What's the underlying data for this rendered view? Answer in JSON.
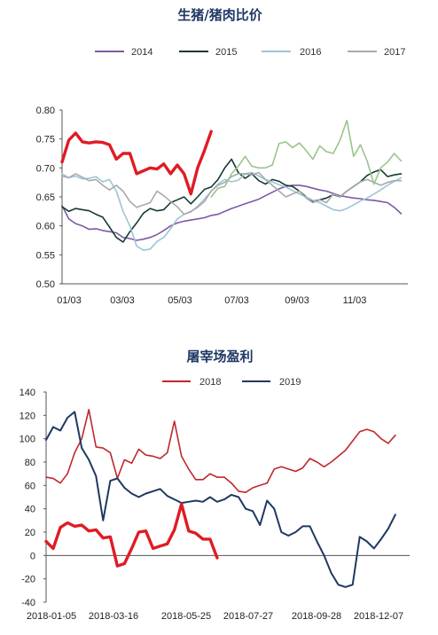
{
  "chart_data": [
    {
      "type": "line",
      "title": "生猪/猪肉比价",
      "x_ticks": [
        "01/03",
        "03/03",
        "05/03",
        "07/03",
        "09/03",
        "11/03"
      ],
      "y_ticks": [
        "0.80",
        "0.75",
        "0.70",
        "0.65",
        "0.60",
        "0.55",
        "0.50"
      ],
      "ylim": [
        0.5,
        0.8
      ],
      "xlim": [
        0,
        51
      ],
      "grid": false,
      "legend_position": "top",
      "series": [
        {
          "name": "2014",
          "color": "#7b5aa6",
          "width": 1.6,
          "values": [
            0.635,
            0.612,
            0.604,
            0.6,
            0.594,
            0.595,
            0.592,
            0.59,
            0.588,
            0.58,
            0.578,
            0.575,
            0.577,
            0.58,
            0.585,
            0.592,
            0.6,
            0.605,
            0.608,
            0.61,
            0.612,
            0.614,
            0.618,
            0.62,
            0.625,
            0.63,
            0.634,
            0.638,
            0.642,
            0.646,
            0.652,
            0.658,
            0.664,
            0.668,
            0.67,
            0.67,
            0.668,
            0.665,
            0.662,
            0.66,
            0.656,
            0.652,
            0.65,
            0.648,
            0.647,
            0.645,
            0.644,
            0.642,
            0.64,
            0.632,
            0.621
          ]
        },
        {
          "name": "2015",
          "color": "#163a2e",
          "width": 1.6,
          "values": [
            0.633,
            0.625,
            0.63,
            0.628,
            0.626,
            0.62,
            0.615,
            0.598,
            0.58,
            0.572,
            0.59,
            0.605,
            0.622,
            0.63,
            0.626,
            0.628,
            0.64,
            0.645,
            0.65,
            0.638,
            0.65,
            0.663,
            0.667,
            0.68,
            0.7,
            0.715,
            0.692,
            0.682,
            0.69,
            0.678,
            0.672,
            0.68,
            0.677,
            0.67,
            0.668,
            0.66,
            0.65,
            0.642,
            0.645,
            0.648,
            0.654,
            0.65,
            0.66,
            0.668,
            0.676,
            0.687,
            0.693,
            0.697,
            0.685,
            0.688,
            0.69
          ]
        },
        {
          "name": "2016",
          "color": "#9dc4d8",
          "width": 1.6,
          "values": [
            0.69,
            0.683,
            0.686,
            0.681,
            0.682,
            0.685,
            0.676,
            0.68,
            0.66,
            0.625,
            0.6,
            0.565,
            0.558,
            0.56,
            0.573,
            0.58,
            0.595,
            0.612,
            0.62,
            0.624,
            0.634,
            0.646,
            0.66,
            0.672,
            0.68,
            0.676,
            0.679,
            0.69,
            0.692,
            0.686,
            0.68,
            0.676,
            0.671,
            0.667,
            0.661,
            0.655,
            0.65,
            0.644,
            0.64,
            0.634,
            0.628,
            0.626,
            0.63,
            0.636,
            0.643,
            0.648,
            0.655,
            0.662,
            0.67,
            0.677,
            0.683
          ]
        },
        {
          "name": "2017",
          "color": "#a9a9a9",
          "width": 1.6,
          "values": [
            0.686,
            0.683,
            0.69,
            0.684,
            0.678,
            0.68,
            0.67,
            0.662,
            0.67,
            0.66,
            0.642,
            0.632,
            0.636,
            0.64,
            0.66,
            0.652,
            0.642,
            0.633,
            0.62,
            0.625,
            0.632,
            0.642,
            0.66,
            0.67,
            0.675,
            0.685,
            0.69,
            0.69,
            0.688,
            0.692,
            0.68,
            0.67,
            0.66,
            0.65,
            0.655,
            0.66,
            0.648,
            0.64,
            0.645,
            0.64,
            0.655,
            0.65,
            0.66,
            0.668,
            0.676,
            0.68,
            0.675,
            0.67,
            0.675,
            0.678,
            0.678
          ]
        },
        {
          "name": "",
          "color": "#9bc48c",
          "width": 1.6,
          "values": [
            null,
            null,
            null,
            null,
            null,
            null,
            null,
            null,
            null,
            null,
            null,
            null,
            null,
            null,
            null,
            null,
            null,
            null,
            null,
            null,
            null,
            null,
            0.65,
            0.665,
            0.668,
            0.69,
            0.703,
            0.72,
            0.703,
            0.7,
            0.7,
            0.705,
            0.742,
            0.745,
            0.735,
            0.743,
            0.73,
            0.715,
            0.738,
            0.728,
            0.725,
            0.748,
            0.782,
            0.72,
            0.74,
            0.712,
            0.672,
            0.7,
            0.71,
            0.725,
            0.712
          ]
        },
        {
          "name": "",
          "color": "#e01b24",
          "width": 3.4,
          "values": [
            0.71,
            0.748,
            0.76,
            0.745,
            0.743,
            0.745,
            0.744,
            0.74,
            0.715,
            0.725,
            0.725,
            0.69,
            0.695,
            0.7,
            0.698,
            0.707,
            0.69,
            0.705,
            0.69,
            0.655,
            0.7,
            0.73,
            0.763
          ]
        }
      ]
    },
    {
      "type": "line",
      "title": "屠宰场盈利",
      "x_ticks": [
        "2018-01-05",
        "2018-03-16",
        "2018-05-25",
        "2018-07-27",
        "2018-09-28",
        "2018-12-07"
      ],
      "y_ticks": [
        "140",
        "120",
        "100",
        "80",
        "60",
        "40",
        "20",
        "0",
        "-20",
        "-40"
      ],
      "ylim": [
        -40,
        140
      ],
      "xlim": [
        0,
        51
      ],
      "grid": false,
      "legend_position": "top",
      "series": [
        {
          "name": "2018",
          "color": "#c0272d",
          "width": 1.6,
          "values": [
            67,
            66,
            62,
            70,
            88,
            100,
            125,
            93,
            92,
            88,
            66,
            82,
            79,
            91,
            86,
            85,
            83,
            88,
            115,
            85,
            74,
            65,
            65,
            70,
            67,
            67,
            62,
            55,
            54,
            58,
            60,
            62,
            74,
            76,
            74,
            72,
            75,
            83,
            80,
            76,
            80,
            85,
            90,
            98,
            106,
            108,
            106,
            100,
            96,
            103
          ]
        },
        {
          "name": "2019",
          "color": "#1f3864",
          "width": 2.0,
          "values": [
            99,
            110,
            107,
            118,
            123,
            92,
            82,
            68,
            30,
            64,
            66,
            58,
            53,
            50,
            53,
            55,
            57,
            51,
            48,
            45,
            46,
            47,
            46,
            50,
            46,
            48,
            52,
            50,
            40,
            38,
            26,
            47,
            40,
            20,
            17,
            20,
            25,
            25,
            12,
            0,
            -15,
            -25,
            -27,
            -25,
            16,
            12,
            6,
            14,
            23,
            35
          ]
        },
        {
          "name": "",
          "color": "#e01b24",
          "width": 3.4,
          "values": [
            12,
            6,
            24,
            28,
            25,
            26,
            21,
            22,
            15,
            16,
            -9,
            -7,
            6,
            20,
            21,
            6,
            8,
            10,
            22,
            44,
            21,
            19,
            14,
            14,
            -2
          ]
        }
      ]
    }
  ]
}
